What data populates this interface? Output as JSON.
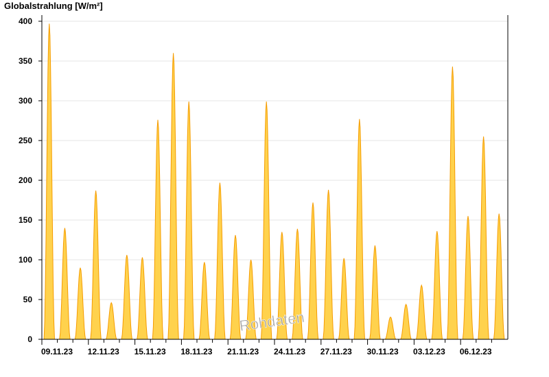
{
  "chart_data": {
    "type": "area",
    "title": "Globalstrahlung [W/m²]",
    "ylim": [
      0,
      400
    ],
    "yticks": [
      0,
      50,
      100,
      150,
      200,
      250,
      300,
      350,
      400
    ],
    "grid": true,
    "x_start": "09.11.23",
    "xtick_labels": [
      "09.11.23",
      "12.11.23",
      "15.11.23",
      "18.11.23",
      "21.11.23",
      "24.11.23",
      "27.11.23",
      "30.11.23",
      "03.12.23",
      "06.12.23"
    ],
    "days": [
      "09.11.23",
      "10.11.23",
      "11.11.23",
      "12.11.23",
      "13.11.23",
      "14.11.23",
      "15.11.23",
      "16.11.23",
      "17.11.23",
      "18.11.23",
      "19.11.23",
      "20.11.23",
      "21.11.23",
      "22.11.23",
      "23.11.23",
      "24.11.23",
      "25.11.23",
      "26.11.23",
      "27.11.23",
      "28.11.23",
      "29.11.23",
      "30.11.23",
      "01.12.23",
      "02.12.23",
      "03.12.23",
      "04.12.23",
      "05.12.23",
      "06.12.23",
      "07.12.23",
      "08.12.23"
    ],
    "daily_peak_values": [
      397,
      140,
      90,
      187,
      46,
      106,
      103,
      276,
      360,
      299,
      97,
      197,
      131,
      100,
      299,
      135,
      139,
      172,
      188,
      102,
      277,
      118,
      28,
      44,
      68,
      136,
      343,
      155,
      255,
      158
    ],
    "colors": {
      "fill": "#ffd24d",
      "line": "#f59c00",
      "grid": "#e6e6e6"
    },
    "watermark": "Rohdaten"
  }
}
